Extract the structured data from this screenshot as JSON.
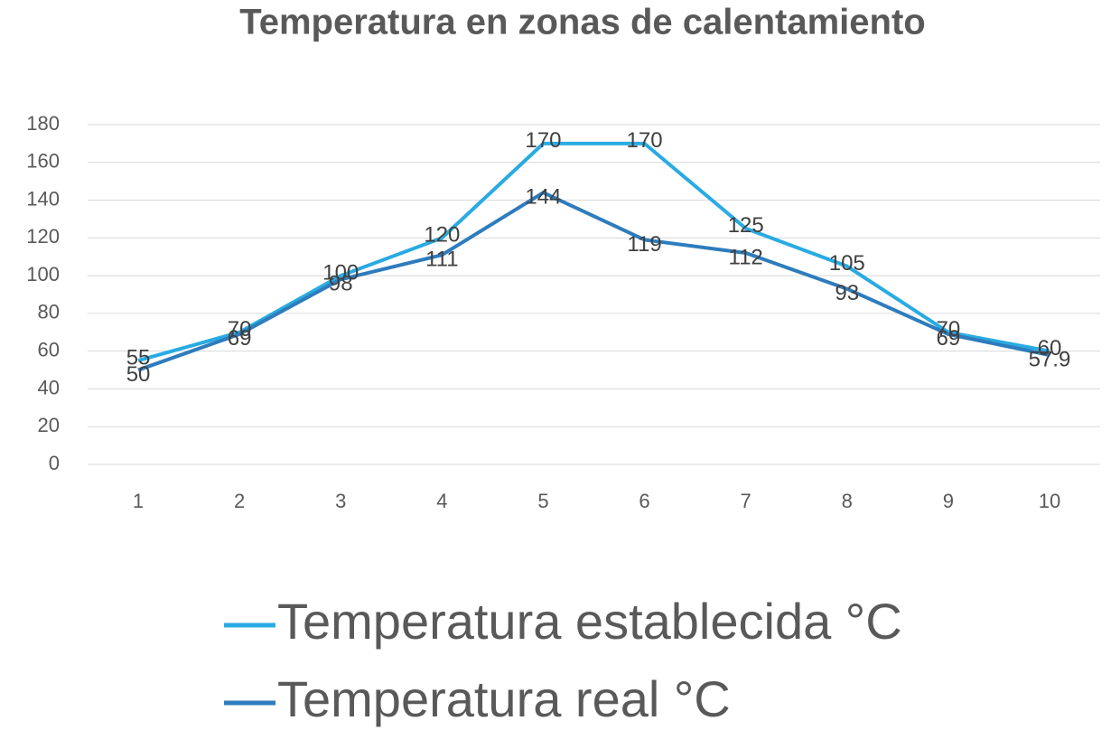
{
  "chart_data": {
    "type": "line",
    "title": "Temperatura en zonas de calentamiento",
    "categories": [
      "1",
      "2",
      "3",
      "4",
      "5",
      "6",
      "7",
      "8",
      "9",
      "10"
    ],
    "series": [
      {
        "name": "Temperatura establecida °C",
        "color": "#29abe2",
        "values": [
          55,
          70,
          100,
          120,
          170,
          170,
          125,
          105,
          70,
          60
        ]
      },
      {
        "name": "Temperatura real °C",
        "color": "#2e7cbd",
        "values": [
          50,
          69,
          98,
          111,
          144,
          119,
          112,
          93,
          69,
          57.9
        ]
      }
    ],
    "ylim": [
      0,
      180
    ],
    "yticks": [
      0,
      20,
      40,
      60,
      80,
      100,
      120,
      140,
      160,
      180
    ],
    "grid": true,
    "legend": "bottom"
  }
}
